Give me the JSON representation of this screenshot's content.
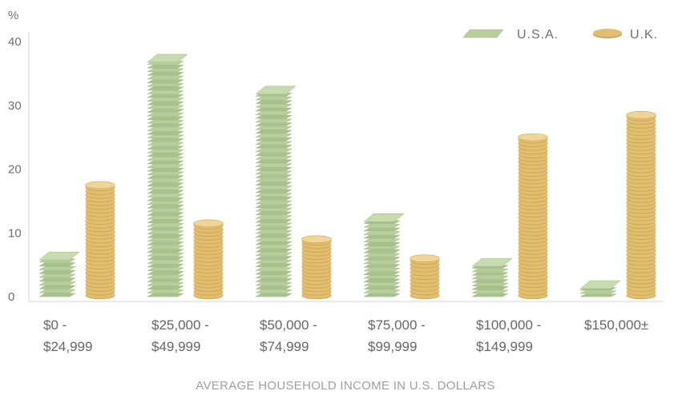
{
  "chart_data": {
    "type": "bar",
    "ylabel": "%",
    "xlabel": "AVERAGE HOUSEHOLD INCOME IN U.S. DOLLARS",
    "ylim": [
      0,
      40
    ],
    "yticks": [
      0,
      10,
      20,
      30,
      40
    ],
    "grid": false,
    "legend_position": "top-right",
    "categories": [
      [
        "$0 -",
        "$24,999"
      ],
      [
        "$25,000 -",
        "$49,999"
      ],
      [
        "$50,000 -",
        "$74,999"
      ],
      [
        "$75,000 -",
        "$99,999"
      ],
      [
        "$100,000 -",
        "$149,999"
      ],
      [
        "$150,000±"
      ]
    ],
    "series": [
      {
        "name": "U.S.A.",
        "icon": "banknote-stack",
        "color": "#b5cc9a",
        "values": [
          6,
          37,
          32,
          12,
          5,
          1.5
        ]
      },
      {
        "name": "U.K.",
        "icon": "coin-stack",
        "color": "#e0bb6a",
        "values": [
          17.5,
          11.5,
          9,
          6,
          25,
          28.5
        ]
      }
    ]
  }
}
